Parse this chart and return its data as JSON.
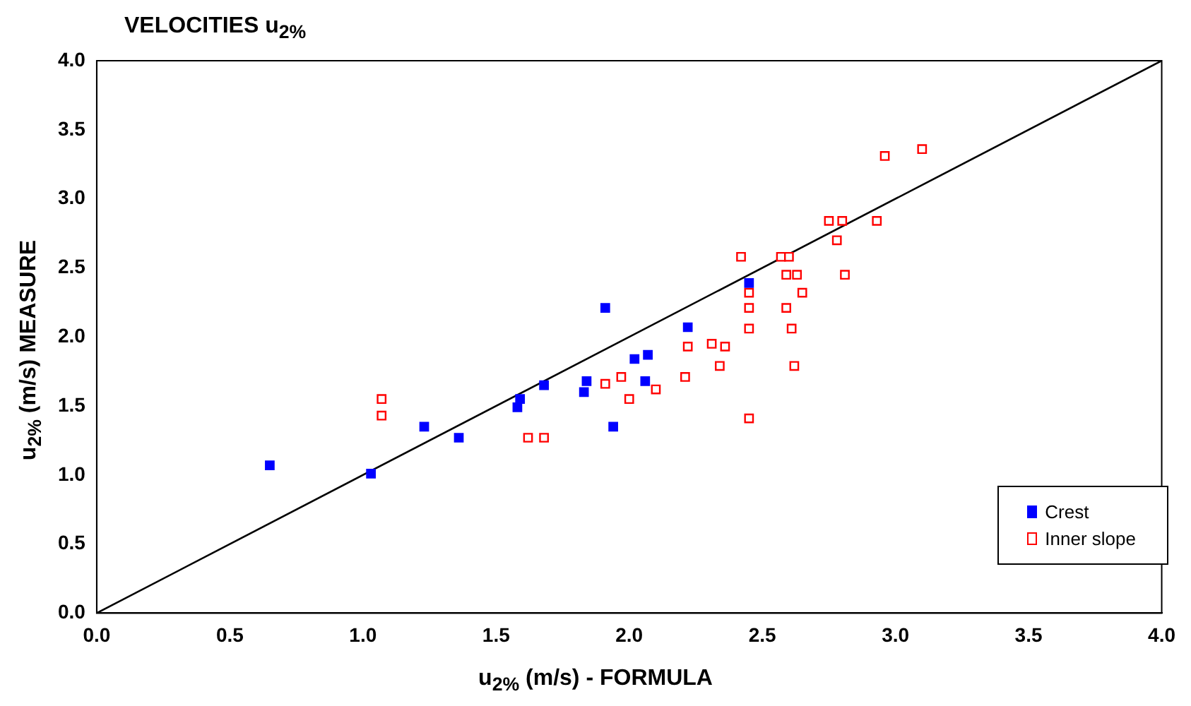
{
  "chart_data": {
    "type": "scatter",
    "title": "VELOCITIES u$_{2%}$",
    "xlabel": "u$_{2%}$ (m/s) - FORMULA",
    "ylabel": "u$_{2%}$ (m/s) MEASURE",
    "xlim": [
      0,
      4
    ],
    "ylim": [
      0,
      4
    ],
    "xticks": [
      {
        "value": 0,
        "label": "0.0"
      },
      {
        "value": 0.5,
        "label": "0.5"
      },
      {
        "value": 1,
        "label": "1.0"
      },
      {
        "value": 1.5,
        "label": "1.5"
      },
      {
        "value": 2,
        "label": "2.0"
      },
      {
        "value": 2.5,
        "label": "2.5"
      },
      {
        "value": 3,
        "label": "3.0"
      },
      {
        "value": 3.5,
        "label": "3.5"
      },
      {
        "value": 4,
        "label": "4.0"
      }
    ],
    "yticks": [
      {
        "value": 0,
        "label": "0.0"
      },
      {
        "value": 0.5,
        "label": "0.5"
      },
      {
        "value": 1,
        "label": "1.0"
      },
      {
        "value": 1.5,
        "label": "1.5"
      },
      {
        "value": 2,
        "label": "2.0"
      },
      {
        "value": 2.5,
        "label": "2.5"
      },
      {
        "value": 3,
        "label": "3.0"
      },
      {
        "value": 3.5,
        "label": "3.5"
      },
      {
        "value": 4,
        "label": "4.0"
      }
    ],
    "grid": false,
    "legend": "bottom right",
    "marker": "square",
    "series": [
      {
        "name": "Crest",
        "color": "#0000ff",
        "x": [
          0.65,
          1.03,
          1.23,
          1.36,
          1.58,
          1.59,
          1.68,
          1.83,
          1.84,
          1.94,
          1.91,
          2.02,
          2.07,
          2.06,
          2.22,
          2.45
        ],
        "values": [
          1.07,
          1.01,
          1.35,
          1.27,
          1.49,
          1.55,
          1.65,
          1.6,
          1.68,
          1.35,
          2.21,
          1.84,
          1.87,
          1.68,
          2.07,
          2.39
        ]
      },
      {
        "name": "Inner slope",
        "color": "#ff0000",
        "x": [
          1.07,
          1.07,
          1.62,
          1.68,
          1.91,
          1.97,
          2.0,
          2.1,
          3.1,
          2.96,
          2.75,
          2.8,
          2.93,
          2.78,
          2.42,
          2.57,
          2.6,
          2.59,
          2.63,
          2.81,
          2.45,
          2.65,
          2.45,
          2.59,
          2.45,
          2.61,
          2.22,
          2.31,
          2.36,
          2.34,
          2.62,
          2.21,
          2.45
        ],
        "values": [
          1.55,
          1.43,
          1.27,
          1.27,
          1.66,
          1.71,
          1.55,
          1.62,
          3.36,
          3.31,
          2.84,
          2.84,
          2.84,
          2.7,
          2.58,
          2.58,
          2.58,
          2.45,
          2.45,
          2.45,
          2.32,
          2.32,
          2.21,
          2.21,
          2.06,
          2.06,
          1.93,
          1.95,
          1.93,
          1.79,
          1.79,
          1.71,
          1.41
        ]
      },
      {
        "type": "line",
        "color": "#000000",
        "x": [
          0,
          4
        ],
        "values": [
          0,
          4
        ],
        "marker": "none"
      }
    ]
  }
}
